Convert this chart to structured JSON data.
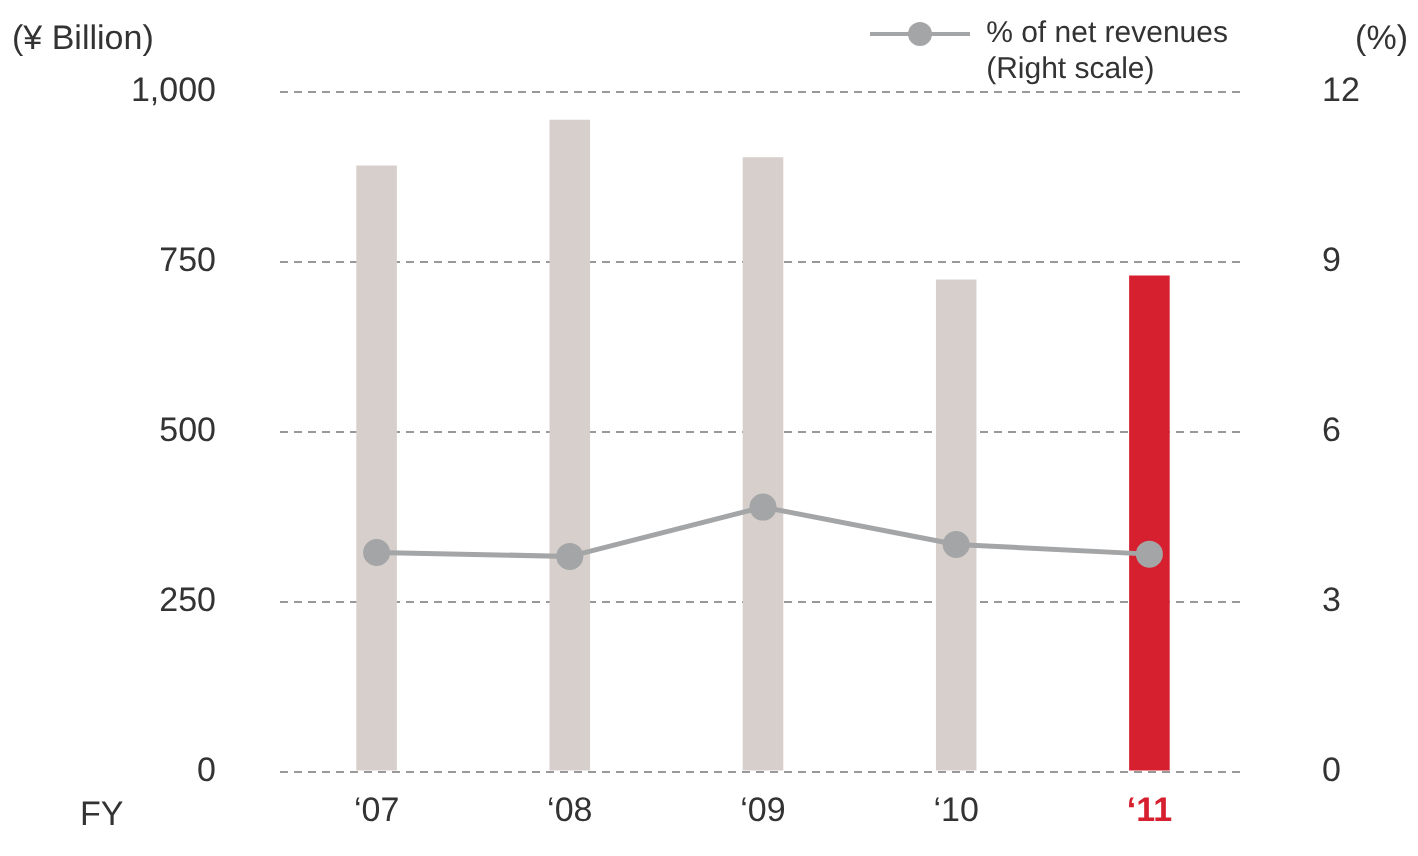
{
  "chart_data": {
    "type": "bar",
    "ylabel": "(¥ Billion)",
    "y2label": "(%)",
    "xlabel": "FY",
    "categories": [
      "‘07",
      "‘08",
      "‘09",
      "‘10",
      "‘11"
    ],
    "series": [
      {
        "values": [
          892,
          959,
          904,
          724,
          730
        ],
        "colors": [
          "#d7cfcb",
          "#d7cfcb",
          "#d7cfcb",
          "#d7cfcb",
          "#d7202f"
        ]
      },
      {
        "type": "line",
        "axis": "y2",
        "name": "% of net revenues\n(Right scale)",
        "color": "#a3a5a7",
        "values": [
          3.87,
          3.8,
          4.67,
          4.01,
          3.84
        ]
      }
    ],
    "ylim": [
      0,
      1000
    ],
    "yticks": [
      0,
      250,
      500,
      750,
      {
        "value": 1000,
        "label": "1,000"
      }
    ],
    "y2lim": [
      0,
      12
    ],
    "y2ticks": [
      0,
      3,
      6,
      9,
      12
    ],
    "grid": "y",
    "legend": "top right",
    "marker": "circle",
    "line_style": "solid"
  }
}
